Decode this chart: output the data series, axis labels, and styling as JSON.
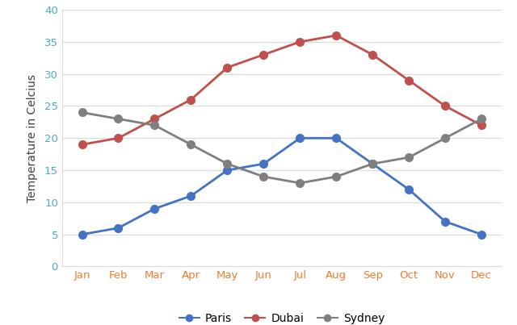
{
  "months": [
    "Jan",
    "Feb",
    "Mar",
    "Apr",
    "May",
    "Jun",
    "Jul",
    "Aug",
    "Sep",
    "Oct",
    "Nov",
    "Dec"
  ],
  "paris": [
    5,
    6,
    9,
    11,
    15,
    16,
    20,
    20,
    16,
    12,
    7,
    5
  ],
  "dubai": [
    19,
    20,
    23,
    26,
    31,
    33,
    35,
    36,
    33,
    29,
    25,
    22
  ],
  "sydney": [
    24,
    23,
    22,
    19,
    16,
    14,
    13,
    14,
    16,
    17,
    20,
    23
  ],
  "paris_color": "#4472c4",
  "dubai_color": "#c0504d",
  "sydney_color": "#7f7f7f",
  "tick_color": "#4bacc6",
  "xlabel_color": "#ed7d31",
  "ylabel": "Temperature in Celcius",
  "ylim": [
    0,
    40
  ],
  "yticks": [
    0,
    5,
    10,
    15,
    20,
    25,
    30,
    35,
    40
  ],
  "grid_color": "#d9d9d9",
  "bg_color": "#ffffff",
  "legend_labels": [
    "Paris",
    "Dubai",
    "Sydney"
  ],
  "marker": "o",
  "linewidth": 2.0,
  "markersize": 7
}
